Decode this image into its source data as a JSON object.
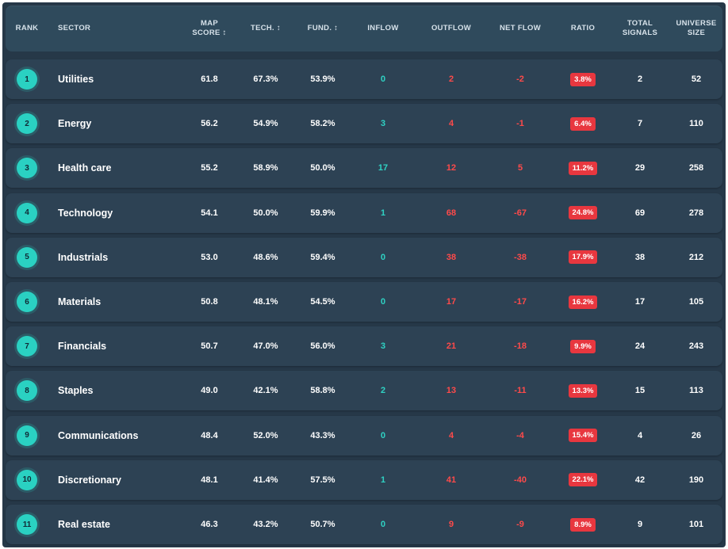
{
  "colors": {
    "panel_bg": "#263848",
    "header_bg": "#2f4a5c",
    "row_bg": "#2d4254",
    "rank_badge": "#2ad1c2",
    "inflow": "#2fd3c4",
    "outflow": "#ff4a4a",
    "ratio_badge": "#e8373f",
    "text": "#ffffff"
  },
  "columns": {
    "rank": "RANK",
    "sector": "SECTOR",
    "map_score": "MAP SCORE ↕",
    "tech": "TECH. ↕",
    "fund": "FUND. ↕",
    "inflow": "INFLOW",
    "outflow": "OUTFLOW",
    "net_flow": "NET FLOW",
    "ratio": "RATIO",
    "total_signals": "TOTAL SIGNALS",
    "universe_size": "UNIVERSE SIZE"
  },
  "rows": [
    {
      "rank": "1",
      "sector": "Utilities",
      "map_score": "61.8",
      "tech": "67.3%",
      "fund": "53.9%",
      "inflow": "0",
      "outflow": "2",
      "net_flow": "-2",
      "ratio": "3.8%",
      "total_signals": "2",
      "universe_size": "52"
    },
    {
      "rank": "2",
      "sector": "Energy",
      "map_score": "56.2",
      "tech": "54.9%",
      "fund": "58.2%",
      "inflow": "3",
      "outflow": "4",
      "net_flow": "-1",
      "ratio": "6.4%",
      "total_signals": "7",
      "universe_size": "110"
    },
    {
      "rank": "3",
      "sector": "Health care",
      "map_score": "55.2",
      "tech": "58.9%",
      "fund": "50.0%",
      "inflow": "17",
      "outflow": "12",
      "net_flow": "5",
      "ratio": "11.2%",
      "total_signals": "29",
      "universe_size": "258"
    },
    {
      "rank": "4",
      "sector": "Technology",
      "map_score": "54.1",
      "tech": "50.0%",
      "fund": "59.9%",
      "inflow": "1",
      "outflow": "68",
      "net_flow": "-67",
      "ratio": "24.8%",
      "total_signals": "69",
      "universe_size": "278"
    },
    {
      "rank": "5",
      "sector": "Industrials",
      "map_score": "53.0",
      "tech": "48.6%",
      "fund": "59.4%",
      "inflow": "0",
      "outflow": "38",
      "net_flow": "-38",
      "ratio": "17.9%",
      "total_signals": "38",
      "universe_size": "212"
    },
    {
      "rank": "6",
      "sector": "Materials",
      "map_score": "50.8",
      "tech": "48.1%",
      "fund": "54.5%",
      "inflow": "0",
      "outflow": "17",
      "net_flow": "-17",
      "ratio": "16.2%",
      "total_signals": "17",
      "universe_size": "105"
    },
    {
      "rank": "7",
      "sector": "Financials",
      "map_score": "50.7",
      "tech": "47.0%",
      "fund": "56.0%",
      "inflow": "3",
      "outflow": "21",
      "net_flow": "-18",
      "ratio": "9.9%",
      "total_signals": "24",
      "universe_size": "243"
    },
    {
      "rank": "8",
      "sector": "Staples",
      "map_score": "49.0",
      "tech": "42.1%",
      "fund": "58.8%",
      "inflow": "2",
      "outflow": "13",
      "net_flow": "-11",
      "ratio": "13.3%",
      "total_signals": "15",
      "universe_size": "113"
    },
    {
      "rank": "9",
      "sector": "Communications",
      "map_score": "48.4",
      "tech": "52.0%",
      "fund": "43.3%",
      "inflow": "0",
      "outflow": "4",
      "net_flow": "-4",
      "ratio": "15.4%",
      "total_signals": "4",
      "universe_size": "26"
    },
    {
      "rank": "10",
      "sector": "Discretionary",
      "map_score": "48.1",
      "tech": "41.4%",
      "fund": "57.5%",
      "inflow": "1",
      "outflow": "41",
      "net_flow": "-40",
      "ratio": "22.1%",
      "total_signals": "42",
      "universe_size": "190"
    },
    {
      "rank": "11",
      "sector": "Real estate",
      "map_score": "46.3",
      "tech": "43.2%",
      "fund": "50.7%",
      "inflow": "0",
      "outflow": "9",
      "net_flow": "-9",
      "ratio": "8.9%",
      "total_signals": "9",
      "universe_size": "101"
    }
  ]
}
